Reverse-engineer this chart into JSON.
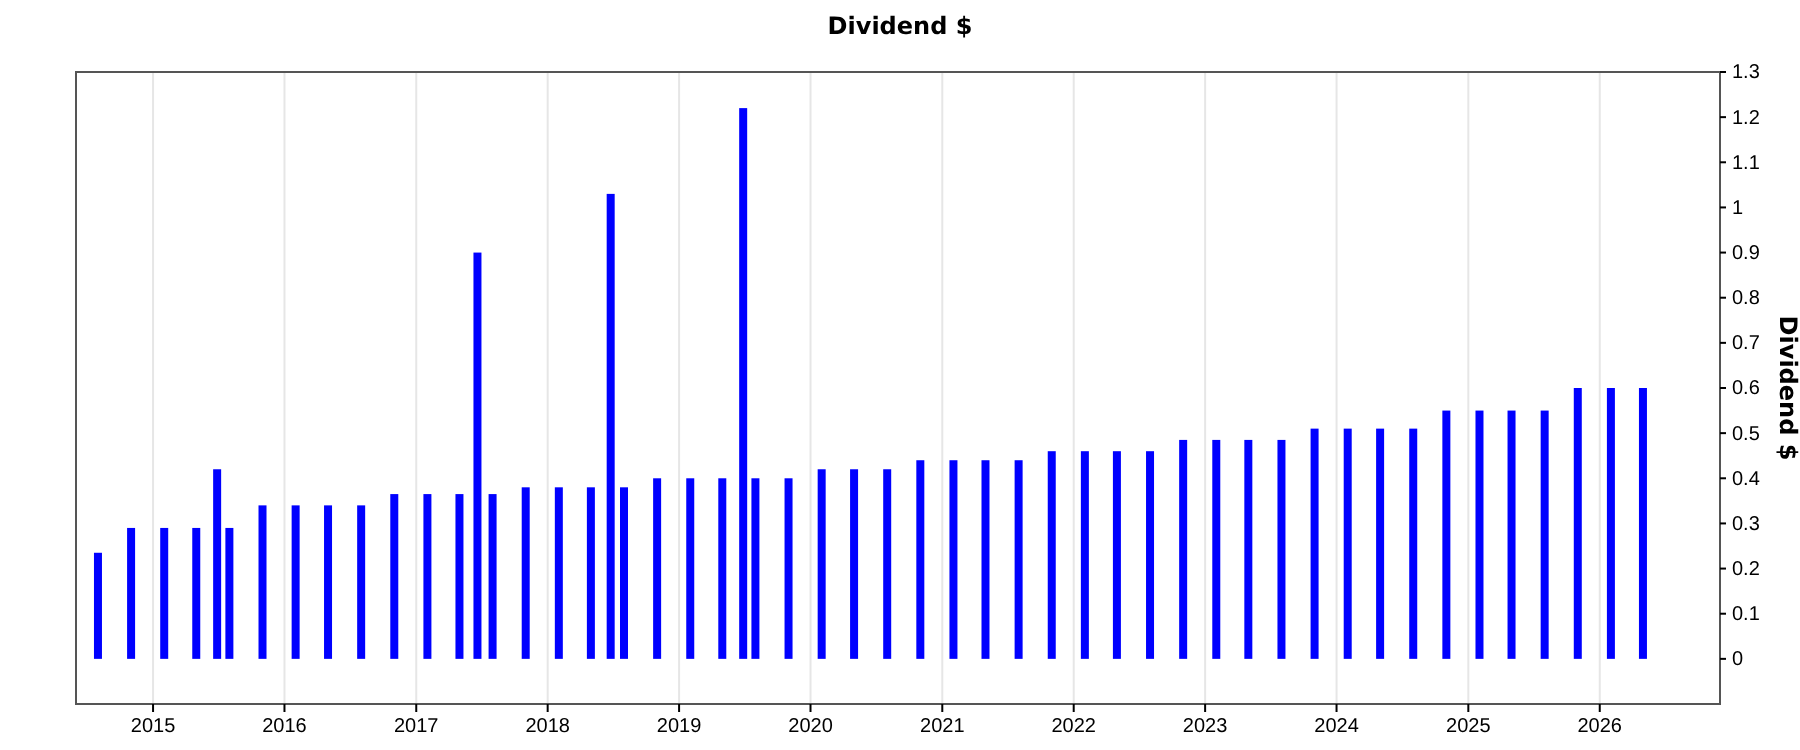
{
  "chart_data": {
    "type": "bar",
    "title": "Dividend $",
    "ylabel": "Dividend $",
    "x": [
      "2014-08",
      "2014-11",
      "2015-02",
      "2015-05",
      "2015-06-28",
      "2015-08",
      "2015-11",
      "2016-02",
      "2016-05",
      "2016-08",
      "2016-11",
      "2017-02",
      "2017-05",
      "2017-06-20",
      "2017-08",
      "2017-11",
      "2018-02",
      "2018-05",
      "2018-06-25",
      "2018-08",
      "2018-11",
      "2019-02",
      "2019-05",
      "2019-06-28",
      "2019-08",
      "2019-11",
      "2020-02",
      "2020-05",
      "2020-08",
      "2020-11",
      "2021-02",
      "2021-05",
      "2021-08",
      "2021-11",
      "2022-02",
      "2022-05",
      "2022-08",
      "2022-11",
      "2023-02",
      "2023-05",
      "2023-08",
      "2023-11",
      "2024-02",
      "2024-05",
      "2024-08",
      "2024-11",
      "2025-02",
      "2025-05",
      "2025-08",
      "2025-11",
      "2026-02",
      "2026-05"
    ],
    "values": [
      0.235,
      0.29,
      0.29,
      0.29,
      0.42,
      0.29,
      0.34,
      0.34,
      0.34,
      0.34,
      0.365,
      0.365,
      0.365,
      0.9,
      0.365,
      0.38,
      0.38,
      0.38,
      1.03,
      0.38,
      0.4,
      0.4,
      0.4,
      1.22,
      0.4,
      0.4,
      0.42,
      0.42,
      0.42,
      0.44,
      0.44,
      0.44,
      0.44,
      0.46,
      0.46,
      0.46,
      0.46,
      0.485,
      0.485,
      0.485,
      0.485,
      0.51,
      0.51,
      0.51,
      0.51,
      0.55,
      0.55,
      0.55,
      0.55,
      0.6,
      0.6,
      0.6
    ],
    "color": "#0000ff",
    "xlim": [
      "2014-06-01",
      "2026-12-01"
    ],
    "xticks": [
      "2015",
      "2016",
      "2017",
      "2018",
      "2019",
      "2020",
      "2021",
      "2022",
      "2023",
      "2024",
      "2025",
      "2026"
    ],
    "ylim": [
      -0.1,
      1.3
    ],
    "yticks": [
      0,
      0.1,
      0.2,
      0.3,
      0.4,
      0.5,
      0.6,
      0.7,
      0.8,
      0.9,
      1,
      1.1,
      1.2,
      1.3
    ],
    "grid": "x"
  }
}
